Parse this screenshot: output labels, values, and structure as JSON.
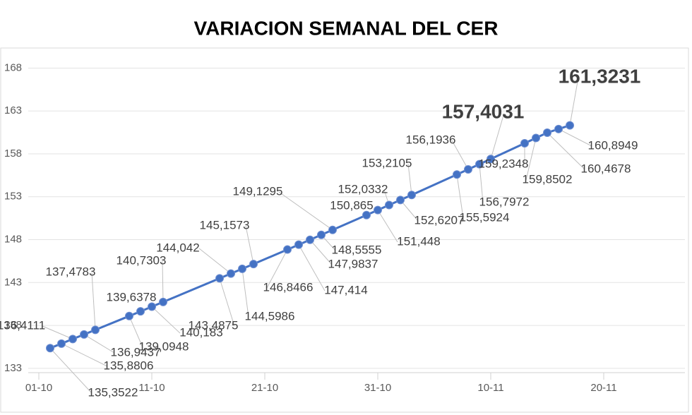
{
  "chart_data": {
    "type": "line",
    "title": "VARIACION SEMANAL DEL CER",
    "x": [
      "02-10",
      "03-10",
      "04-10",
      "05-10",
      "06-10",
      "09-10",
      "10-10",
      "11-10",
      "12-10",
      "17-10",
      "18-10",
      "19-10",
      "20-10",
      "23-10",
      "24-10",
      "25-10",
      "26-10",
      "27-10",
      "30-10",
      "31-10",
      "01-11",
      "02-11",
      "03-11",
      "07-11",
      "08-11",
      "09-11",
      "10-11",
      "13-11",
      "14-11",
      "15-11",
      "16-11",
      "17-11"
    ],
    "series": [
      {
        "name": "CER",
        "color": "#4472c4",
        "values": [
          135.3522,
          135.8806,
          136.4111,
          136.9437,
          137.4783,
          139.0948,
          139.6378,
          140.183,
          140.7303,
          143.4875,
          144.042,
          144.5986,
          145.1573,
          146.8466,
          147.414,
          147.9837,
          148.5555,
          149.1295,
          150.865,
          151.448,
          152.0332,
          152.6207,
          153.2105,
          155.5924,
          156.1936,
          156.7972,
          157.4031,
          159.2348,
          159.8502,
          160.4678,
          160.8949,
          161.3231
        ],
        "value_labels": [
          "135,3522",
          "135,8806",
          "136,4111",
          "136,9437",
          "137,4783",
          "139,0948",
          "139,6378",
          "140,183",
          "140,7303",
          "143,4875",
          "144,042",
          "144,5986",
          "145,1573",
          "146,8466",
          "147,414",
          "147,9837",
          "148,5555",
          "149,1295",
          "150,865",
          "151,448",
          "152,0332",
          "152,6207",
          "153,2105",
          "155,5924",
          "156,1936",
          "156,7972",
          "157,4031",
          "159,2348",
          "159,8502",
          "160,4678",
          "160,8949",
          "161,3231"
        ]
      }
    ],
    "xlim": [
      "01-10",
      "25-11"
    ],
    "xticks": [
      "01-10",
      "11-10",
      "21-10",
      "31-10",
      "10-11",
      "20-11"
    ],
    "ylim": [
      132,
      171
    ],
    "yticks": [
      133,
      138,
      143,
      148,
      153,
      158,
      163,
      168
    ],
    "grid": true
  }
}
